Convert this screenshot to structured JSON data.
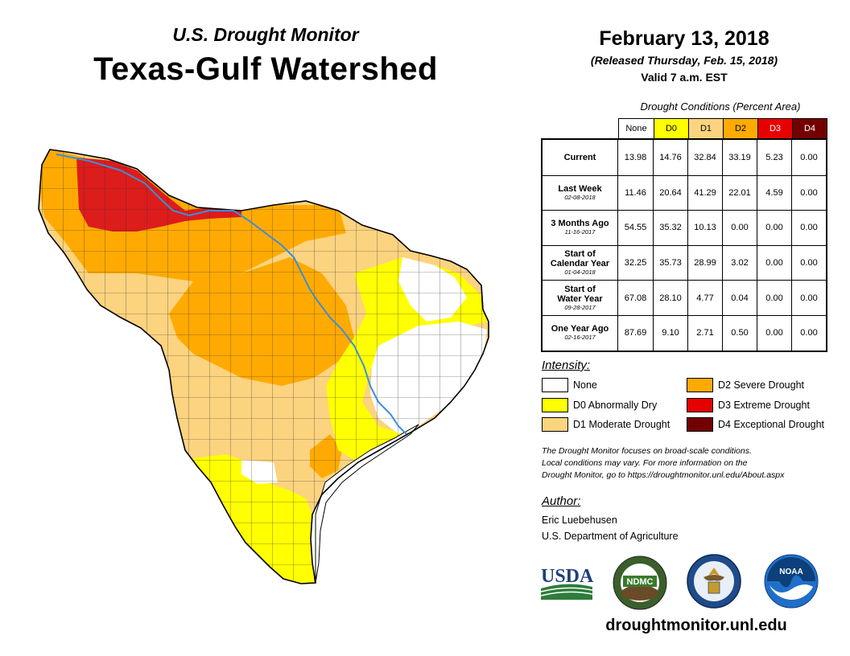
{
  "header": {
    "subtitle": "U.S. Drought Monitor",
    "title": "Texas-Gulf Watershed",
    "date": "February 13, 2018",
    "released": "(Released Thursday, Feb. 15, 2018)",
    "valid": "Valid 7 a.m. EST"
  },
  "table": {
    "caption": "Drought Conditions (Percent Area)",
    "columns": [
      "None",
      "D0",
      "D1",
      "D2",
      "D3",
      "D4"
    ],
    "column_colors": [
      "#ffffff",
      "#ffff00",
      "#fcd37f",
      "#ffaa00",
      "#e60000",
      "#730000"
    ],
    "rows": [
      {
        "label": "Current",
        "date": "",
        "values": [
          "13.98",
          "14.76",
          "32.84",
          "33.19",
          "5.23",
          "0.00"
        ]
      },
      {
        "label": "Last Week",
        "date": "02-08-2018",
        "values": [
          "11.46",
          "20.64",
          "41.29",
          "22.01",
          "4.59",
          "0.00"
        ]
      },
      {
        "label": "3 Months Ago",
        "date": "11-16-2017",
        "values": [
          "54.55",
          "35.32",
          "10.13",
          "0.00",
          "0.00",
          "0.00"
        ]
      },
      {
        "label": "Start of Calendar Year",
        "date": "01-04-2018",
        "values": [
          "32.25",
          "35.73",
          "28.99",
          "3.02",
          "0.00",
          "0.00"
        ]
      },
      {
        "label": "Start of Water Year",
        "date": "09-28-2017",
        "values": [
          "67.08",
          "28.10",
          "4.77",
          "0.04",
          "0.00",
          "0.00"
        ]
      },
      {
        "label": "One Year Ago",
        "date": "02-16-2017",
        "values": [
          "87.69",
          "9.10",
          "2.71",
          "0.50",
          "0.00",
          "0.00"
        ]
      }
    ]
  },
  "legend": {
    "heading": "Intensity:",
    "items": [
      {
        "label": "None",
        "color": "#ffffff"
      },
      {
        "label": "D0 Abnormally Dry",
        "color": "#ffff00"
      },
      {
        "label": "D1 Moderate Drought",
        "color": "#fcd37f"
      },
      {
        "label": "D2 Severe Drought",
        "color": "#ffaa00"
      },
      {
        "label": "D3 Extreme Drought",
        "color": "#e60000"
      },
      {
        "label": "D4 Exceptional Drought",
        "color": "#730000"
      }
    ]
  },
  "note": {
    "line1": "The Drought Monitor focuses on broad-scale conditions.",
    "line2": "Local conditions may vary. For more information on the",
    "line3": "Drought Monitor, go to https://droughtmonitor.unl.edu/About.aspx"
  },
  "author": {
    "heading": "Author:",
    "name": "Eric Luebehusen",
    "org": "U.S. Department of Agriculture"
  },
  "logos": {
    "usda": "USDA",
    "ndmc": "NDMC",
    "noaa": "NOAA"
  },
  "footer": {
    "url": "droughtmonitor.unl.edu"
  },
  "colors": {
    "none": "#ffffff",
    "d0": "#ffff00",
    "d1": "#fcd37f",
    "d2": "#ffaa00",
    "d3": "#e60000",
    "d4": "#730000",
    "river": "#3c8fd6",
    "d3_map": "#dd1c1c"
  }
}
